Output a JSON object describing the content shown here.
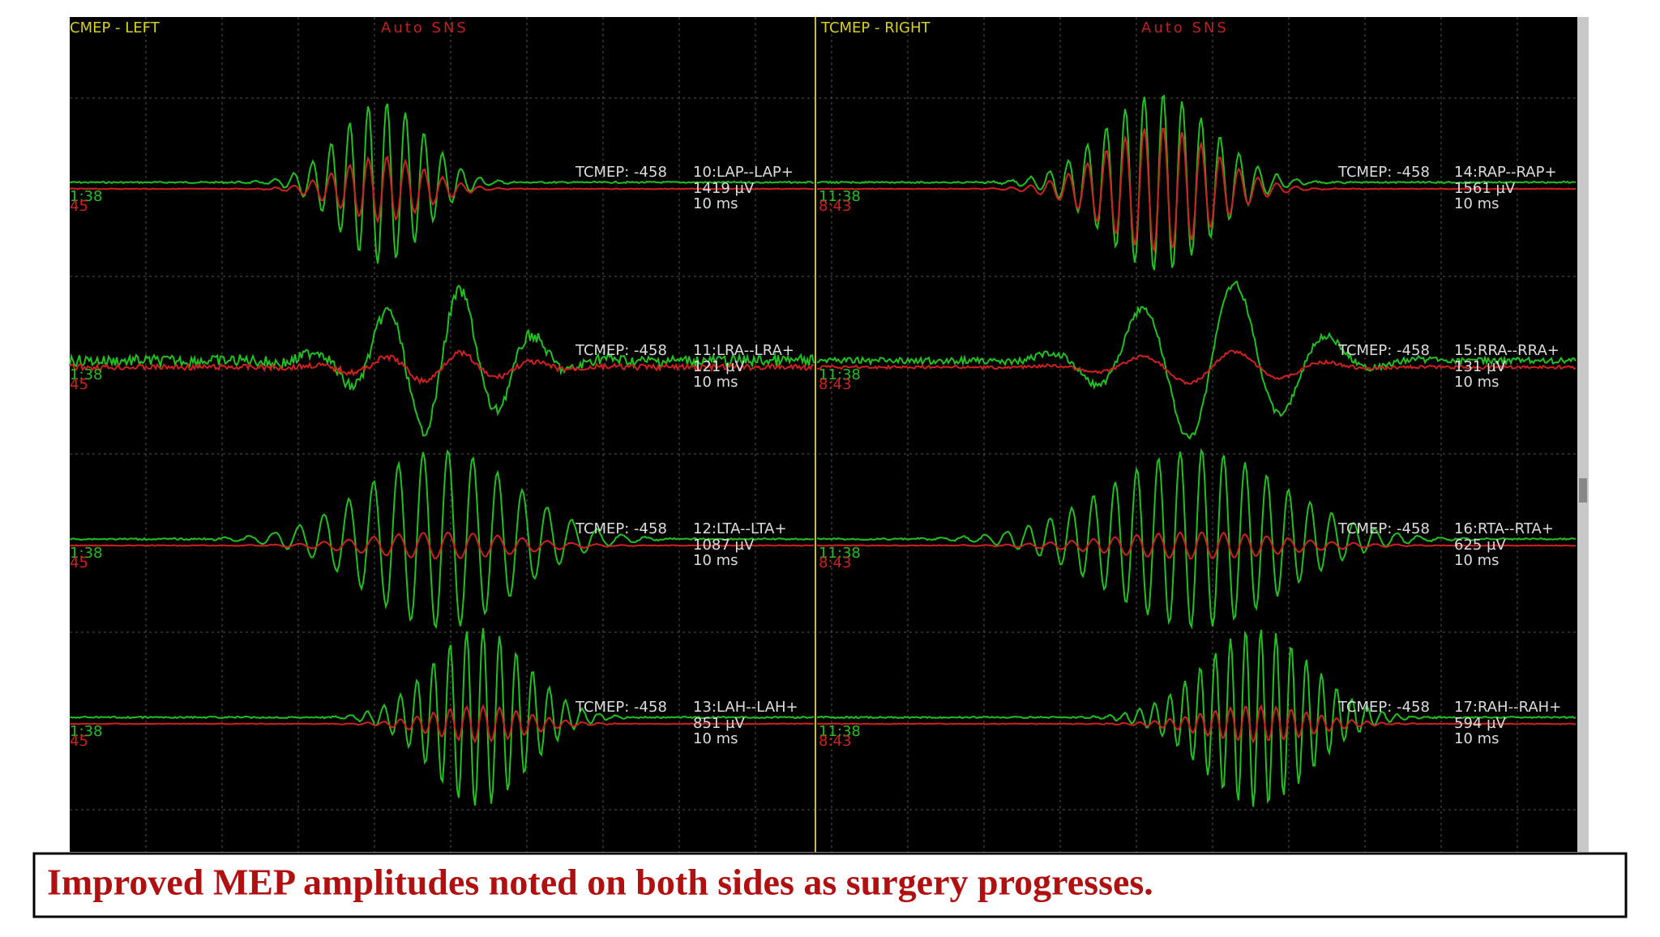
{
  "header": {
    "left_title": "CMEP - LEFT",
    "left_mode": "Auto SNS",
    "right_title": "TCMEP - RIGHT",
    "right_mode": "Auto SNS"
  },
  "channels": [
    {
      "mode": "TCMEP: -458",
      "name": "10:LAP--LAP+",
      "amplitude": "1419 µV",
      "sweep": "10 ms",
      "time_green": "1:38",
      "time_red": "45"
    },
    {
      "mode": "TCMEP: -458",
      "name": "11:LRA--LRA+",
      "amplitude": "121 µV",
      "sweep": "10 ms",
      "time_green": "1:38",
      "time_red": "45"
    },
    {
      "mode": "TCMEP: -458",
      "name": "12:LTA--LTA+",
      "amplitude": "1087 µV",
      "sweep": "10 ms",
      "time_green": "1:38",
      "time_red": "45"
    },
    {
      "mode": "TCMEP: -458",
      "name": "13:LAH--LAH+",
      "amplitude": "851 µV",
      "sweep": "10 ms",
      "time_green": "1:38",
      "time_red": "45"
    },
    {
      "mode": "TCMEP: -458",
      "name": "14:RAP--RAP+",
      "amplitude": "1561 µV",
      "sweep": "10 ms",
      "time_green": "11:38",
      "time_red": "8:43"
    },
    {
      "mode": "TCMEP: -458",
      "name": "15:RRA--RRA+",
      "amplitude": "131 µV",
      "sweep": "10 ms",
      "time_green": "11:38",
      "time_red": "8:43"
    },
    {
      "mode": "TCMEP: -458",
      "name": "16:RTA--RTA+",
      "amplitude": "625 µV",
      "sweep": "10 ms",
      "time_green": "11:38",
      "time_red": "8:43"
    },
    {
      "mode": "TCMEP: -458",
      "name": "17:RAH--RAH+",
      "amplitude": "594 µV",
      "sweep": "10 ms",
      "time_green": "11:38",
      "time_red": "8:43"
    }
  ],
  "caption": "Improved MEP amplitudes noted on both sides as surgery progresses."
}
